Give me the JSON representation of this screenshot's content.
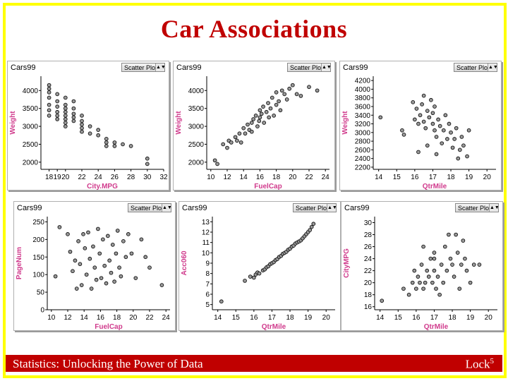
{
  "slide_title": "Car Associations",
  "footer_left": "Statistics: Unlocking the Power of Data",
  "footer_right_main": "Lock",
  "footer_right_sup": "5",
  "colors": {
    "title": "#c00000",
    "footer_bg": "#c00000",
    "frame": "#ffff00",
    "axis_label": "#d03a8c"
  },
  "dataset_label": "Cars99",
  "plot_type_label": "Scatter Plot",
  "chart_data": [
    {
      "type": "scatter",
      "xlabel": "City.MPG",
      "ylabel": "Weight",
      "xlim": [
        17,
        32
      ],
      "ylim": [
        1800,
        4400
      ],
      "xticks": [
        18,
        19,
        20,
        22,
        24,
        26,
        28,
        30,
        32
      ],
      "yticks": [
        2000,
        2500,
        3000,
        3500,
        4000
      ],
      "points": [
        [
          18,
          4150
        ],
        [
          18,
          4050
        ],
        [
          18,
          3950
        ],
        [
          18,
          3800
        ],
        [
          18,
          3600
        ],
        [
          18,
          3300
        ],
        [
          18,
          3450
        ],
        [
          19,
          3900
        ],
        [
          19,
          3700
        ],
        [
          19,
          3550
        ],
        [
          19,
          3400
        ],
        [
          19,
          3300
        ],
        [
          19,
          3200
        ],
        [
          20,
          3800
        ],
        [
          20,
          3600
        ],
        [
          20,
          3500
        ],
        [
          20,
          3400
        ],
        [
          20,
          3300
        ],
        [
          20,
          3200
        ],
        [
          20,
          3100
        ],
        [
          20,
          3000
        ],
        [
          21,
          3700
        ],
        [
          21,
          3500
        ],
        [
          21,
          3350
        ],
        [
          21,
          3250
        ],
        [
          21,
          3150
        ],
        [
          22,
          3300
        ],
        [
          22,
          3150
        ],
        [
          22,
          3050
        ],
        [
          22,
          2950
        ],
        [
          22,
          2850
        ],
        [
          23,
          3000
        ],
        [
          23,
          2800
        ],
        [
          24,
          2900
        ],
        [
          24,
          2750
        ],
        [
          25,
          2650
        ],
        [
          25,
          2550
        ],
        [
          25,
          2450
        ],
        [
          26,
          2550
        ],
        [
          26,
          2450
        ],
        [
          27,
          2500
        ],
        [
          28,
          2450
        ],
        [
          30,
          2100
        ],
        [
          30,
          1950
        ]
      ]
    },
    {
      "type": "scatter",
      "xlabel": "FuelCap",
      "ylabel": "Weight",
      "xlim": [
        9.5,
        24.5
      ],
      "ylim": [
        1800,
        4400
      ],
      "xticks": [
        10,
        12,
        14,
        16,
        18,
        20,
        22,
        24
      ],
      "yticks": [
        2000,
        2500,
        3000,
        3500,
        4000
      ],
      "points": [
        [
          10.5,
          2050
        ],
        [
          10.8,
          1950
        ],
        [
          11.5,
          2500
        ],
        [
          12,
          2400
        ],
        [
          12.2,
          2600
        ],
        [
          12.5,
          2550
        ],
        [
          13,
          2700
        ],
        [
          13.2,
          2600
        ],
        [
          13.5,
          2800
        ],
        [
          13.7,
          2550
        ],
        [
          14,
          2950
        ],
        [
          14.2,
          2800
        ],
        [
          14.5,
          3050
        ],
        [
          14.7,
          2900
        ],
        [
          15,
          3100
        ],
        [
          15,
          2850
        ],
        [
          15.2,
          3200
        ],
        [
          15.5,
          3300
        ],
        [
          15.7,
          3000
        ],
        [
          15.9,
          3150
        ],
        [
          16,
          3450
        ],
        [
          16,
          3250
        ],
        [
          16.2,
          3350
        ],
        [
          16.4,
          3550
        ],
        [
          16.5,
          3100
        ],
        [
          16.8,
          3400
        ],
        [
          17,
          3650
        ],
        [
          17.1,
          3250
        ],
        [
          17.3,
          3500
        ],
        [
          17.5,
          3800
        ],
        [
          17.7,
          3300
        ],
        [
          18,
          3950
        ],
        [
          18,
          3600
        ],
        [
          18.3,
          3700
        ],
        [
          18.5,
          3450
        ],
        [
          18.7,
          4000
        ],
        [
          19,
          3900
        ],
        [
          19.3,
          3750
        ],
        [
          19.6,
          4050
        ],
        [
          20,
          4150
        ],
        [
          20.5,
          3900
        ],
        [
          21,
          3850
        ],
        [
          22,
          4100
        ],
        [
          23,
          4000
        ]
      ]
    },
    {
      "type": "scatter",
      "xlabel": "QtrMile",
      "ylabel": "Weight",
      "xlim": [
        13.7,
        20.5
      ],
      "ylim": [
        2150,
        4300
      ],
      "xticks": [
        14,
        15,
        16,
        17,
        18,
        19,
        20
      ],
      "yticks": [
        2200,
        2400,
        2600,
        2800,
        3000,
        3200,
        3400,
        3600,
        3800,
        4000,
        4200
      ],
      "points": [
        [
          14.1,
          3350
        ],
        [
          15.3,
          3050
        ],
        [
          15.4,
          2950
        ],
        [
          15.9,
          3700
        ],
        [
          16,
          3300
        ],
        [
          16.1,
          3550
        ],
        [
          16.2,
          3200
        ],
        [
          16.3,
          3400
        ],
        [
          16.4,
          3650
        ],
        [
          16.5,
          3850
        ],
        [
          16.5,
          3250
        ],
        [
          16.6,
          3100
        ],
        [
          16.7,
          3500
        ],
        [
          16.8,
          3350
        ],
        [
          16.9,
          3750
        ],
        [
          17,
          3450
        ],
        [
          17,
          3200
        ],
        [
          17.1,
          3050
        ],
        [
          17.1,
          3600
        ],
        [
          17.2,
          2900
        ],
        [
          17.3,
          3300
        ],
        [
          17.4,
          3150
        ],
        [
          17.5,
          2750
        ],
        [
          17.6,
          3050
        ],
        [
          17.7,
          3400
        ],
        [
          17.8,
          2850
        ],
        [
          17.9,
          3200
        ],
        [
          18,
          3000
        ],
        [
          18.1,
          2650
        ],
        [
          18.2,
          2850
        ],
        [
          18.3,
          3100
        ],
        [
          18.4,
          2400
        ],
        [
          18.5,
          2600
        ],
        [
          18.6,
          2900
        ],
        [
          18.7,
          2700
        ],
        [
          18.9,
          2450
        ],
        [
          19,
          3050
        ],
        [
          16.2,
          2550
        ],
        [
          16.7,
          2700
        ],
        [
          17.2,
          2500
        ]
      ]
    },
    {
      "type": "scatter",
      "xlabel": "FuelCap",
      "ylabel": "PageNum",
      "xlim": [
        9.5,
        24.5
      ],
      "ylim": [
        0,
        265
      ],
      "xticks": [
        10,
        12,
        14,
        16,
        18,
        20,
        22,
        24
      ],
      "yticks": [
        0,
        50,
        100,
        150,
        200,
        250
      ],
      "points": [
        [
          10.5,
          95
        ],
        [
          11,
          235
        ],
        [
          12,
          215
        ],
        [
          12.3,
          165
        ],
        [
          12.6,
          110
        ],
        [
          12.9,
          140
        ],
        [
          13.1,
          60
        ],
        [
          13.3,
          195
        ],
        [
          13.5,
          130
        ],
        [
          13.7,
          70
        ],
        [
          13.9,
          215
        ],
        [
          14.1,
          175
        ],
        [
          14.3,
          100
        ],
        [
          14.5,
          220
        ],
        [
          14.7,
          145
        ],
        [
          14.9,
          60
        ],
        [
          15.1,
          180
        ],
        [
          15.3,
          120
        ],
        [
          15.5,
          85
        ],
        [
          15.7,
          230
        ],
        [
          15.9,
          160
        ],
        [
          16.1,
          90
        ],
        [
          16.3,
          200
        ],
        [
          16.5,
          125
        ],
        [
          16.7,
          75
        ],
        [
          16.9,
          210
        ],
        [
          17.1,
          140
        ],
        [
          17.3,
          105
        ],
        [
          17.5,
          185
        ],
        [
          17.7,
          80
        ],
        [
          17.9,
          160
        ],
        [
          18.1,
          225
        ],
        [
          18.3,
          120
        ],
        [
          18.5,
          95
        ],
        [
          18.8,
          195
        ],
        [
          19.1,
          150
        ],
        [
          19.4,
          215
        ],
        [
          19.8,
          160
        ],
        [
          20.3,
          90
        ],
        [
          21,
          200
        ],
        [
          21.5,
          150
        ],
        [
          22,
          120
        ],
        [
          23.5,
          70
        ]
      ]
    },
    {
      "type": "scatter",
      "xlabel": "QtrMile",
      "ylabel": "Acc060",
      "xlim": [
        13.7,
        20.5
      ],
      "ylim": [
        4.5,
        13.5
      ],
      "xticks": [
        14,
        15,
        16,
        17,
        18,
        19,
        20
      ],
      "yticks": [
        5,
        6,
        7,
        8,
        9,
        10,
        11,
        12,
        13
      ],
      "points": [
        [
          14.2,
          5.3
        ],
        [
          15.5,
          7.3
        ],
        [
          15.8,
          7.7
        ],
        [
          16,
          7.6
        ],
        [
          16.1,
          7.9
        ],
        [
          16.2,
          8.1
        ],
        [
          16.3,
          8.0
        ],
        [
          16.5,
          8.3
        ],
        [
          16.6,
          8.4
        ],
        [
          16.7,
          8.6
        ],
        [
          16.8,
          8.7
        ],
        [
          16.9,
          8.9
        ],
        [
          17,
          9.0
        ],
        [
          17.1,
          9.1
        ],
        [
          17.2,
          9.3
        ],
        [
          17.3,
          9.4
        ],
        [
          17.4,
          9.6
        ],
        [
          17.5,
          9.7
        ],
        [
          17.6,
          9.9
        ],
        [
          17.7,
          10.0
        ],
        [
          17.8,
          10.1
        ],
        [
          17.9,
          10.3
        ],
        [
          18,
          10.4
        ],
        [
          18.1,
          10.6
        ],
        [
          18.2,
          10.7
        ],
        [
          18.3,
          10.9
        ],
        [
          18.4,
          11.0
        ],
        [
          18.5,
          11.1
        ],
        [
          18.6,
          11.2
        ],
        [
          18.7,
          11.4
        ],
        [
          18.8,
          11.6
        ],
        [
          18.9,
          11.8
        ],
        [
          19,
          12.0
        ],
        [
          19.1,
          12.2
        ],
        [
          19.2,
          12.5
        ],
        [
          19.3,
          12.8
        ]
      ]
    },
    {
      "type": "scatter",
      "xlabel": "QtrMile",
      "ylabel": "CityMPG",
      "xlim": [
        13.7,
        20.5
      ],
      "ylim": [
        15.5,
        31
      ],
      "xticks": [
        14,
        15,
        16,
        17,
        18,
        19,
        20
      ],
      "yticks": [
        16,
        18,
        20,
        22,
        24,
        26,
        28,
        30
      ],
      "points": [
        [
          14.1,
          17
        ],
        [
          15.3,
          19
        ],
        [
          15.6,
          18
        ],
        [
          15.8,
          20
        ],
        [
          15.9,
          22
        ],
        [
          16,
          19
        ],
        [
          16.1,
          21
        ],
        [
          16.2,
          20
        ],
        [
          16.3,
          23
        ],
        [
          16.4,
          19
        ],
        [
          16.5,
          20
        ],
        [
          16.6,
          22
        ],
        [
          16.7,
          21
        ],
        [
          16.8,
          24
        ],
        [
          16.9,
          20
        ],
        [
          17,
          25
        ],
        [
          17,
          22
        ],
        [
          17.1,
          19
        ],
        [
          17.2,
          21
        ],
        [
          17.3,
          18
        ],
        [
          17.4,
          23
        ],
        [
          17.5,
          20
        ],
        [
          17.6,
          26
        ],
        [
          17.7,
          22
        ],
        [
          17.8,
          28
        ],
        [
          17.9,
          24
        ],
        [
          18,
          23
        ],
        [
          18.1,
          21
        ],
        [
          18.2,
          28
        ],
        [
          18.3,
          25
        ],
        [
          18.4,
          19
        ],
        [
          18.5,
          23
        ],
        [
          18.6,
          27
        ],
        [
          18.7,
          24
        ],
        [
          18.8,
          22
        ],
        [
          19,
          20
        ],
        [
          19.2,
          23
        ],
        [
          19.5,
          23
        ],
        [
          16.4,
          26
        ],
        [
          17,
          24
        ]
      ]
    }
  ]
}
